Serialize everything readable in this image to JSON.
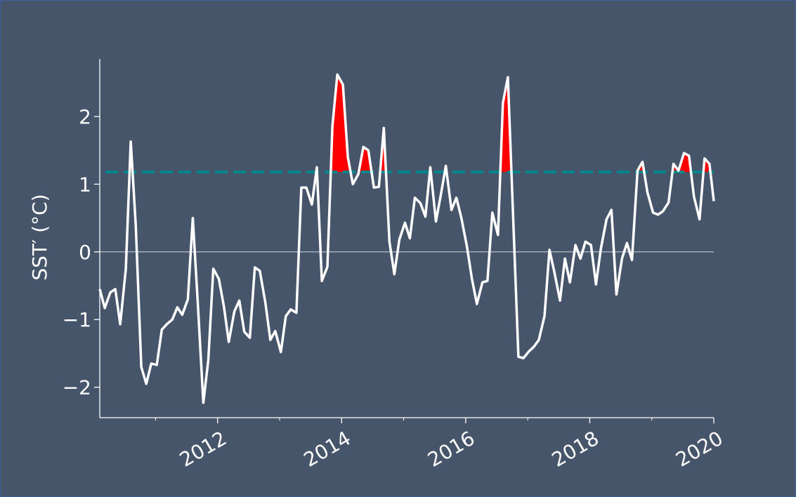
{
  "chart_data": {
    "type": "line",
    "ylabel": "SST′ (°C)",
    "xlim": [
      2010.1,
      2020.0
    ],
    "ylim": [
      -2.45,
      2.85
    ],
    "x_ticks": [
      2012,
      2014,
      2016,
      2018,
      2020
    ],
    "x_tick_labels": [
      "2012",
      "2014",
      "2016",
      "2018",
      "2020"
    ],
    "x_minor_ticks": [
      2011,
      2013,
      2015,
      2017,
      2019
    ],
    "y_ticks": [
      -2,
      -1,
      0,
      1,
      2
    ],
    "y_tick_labels": [
      "−2",
      "−1",
      "0",
      "1",
      "2"
    ],
    "threshold": 1.18,
    "grid": false,
    "colors": {
      "background": "#47556b",
      "line": "#ffffff",
      "threshold_line": "#00868b",
      "fill_above_threshold": "#ff0000",
      "zero_line": "#b4bbc6"
    },
    "series": [
      {
        "x": [
          2010.1,
          2010.18,
          2010.27,
          2010.35,
          2010.43,
          2010.52,
          2010.6,
          2010.68,
          2010.77,
          2010.85,
          2010.93,
          2011.02,
          2011.1,
          2011.18,
          2011.27,
          2011.35,
          2011.43,
          2011.52,
          2011.6,
          2011.68,
          2011.77,
          2011.85,
          2011.93,
          2012.02,
          2012.1,
          2012.18,
          2012.27,
          2012.35,
          2012.43,
          2012.52,
          2012.6,
          2012.68,
          2012.77,
          2012.85,
          2012.93,
          2013.02,
          2013.1,
          2013.18,
          2013.27,
          2013.35,
          2013.43,
          2013.52,
          2013.6,
          2013.68,
          2013.77,
          2013.85,
          2013.93,
          2014.02,
          2014.1,
          2014.18,
          2014.27,
          2014.35,
          2014.43,
          2014.52,
          2014.6,
          2014.68,
          2014.77,
          2014.85,
          2014.93,
          2015.02,
          2015.1,
          2015.18,
          2015.27,
          2015.35,
          2015.43,
          2015.52,
          2015.6,
          2015.68,
          2015.77,
          2015.85,
          2015.93,
          2016.02,
          2016.1,
          2016.18,
          2016.27,
          2016.35,
          2016.43,
          2016.52,
          2016.6,
          2016.68,
          2016.77,
          2016.85,
          2016.93,
          2017.02,
          2017.1,
          2017.18,
          2017.27,
          2017.35,
          2017.43,
          2017.52,
          2017.6,
          2017.68,
          2017.77,
          2017.85,
          2017.93,
          2018.02,
          2018.1,
          2018.18,
          2018.27,
          2018.35,
          2018.43,
          2018.52,
          2018.6,
          2018.68,
          2018.77,
          2018.85,
          2018.93,
          2019.02,
          2019.1,
          2019.18,
          2019.27,
          2019.35,
          2019.43,
          2019.52,
          2019.6,
          2019.68,
          2019.77,
          2019.85,
          2019.93,
          2020.0
        ],
        "y": [
          -0.55,
          -0.83,
          -0.6,
          -0.55,
          -1.07,
          -0.25,
          1.63,
          0.4,
          -1.7,
          -1.95,
          -1.65,
          -1.67,
          -1.15,
          -1.07,
          -1.0,
          -0.82,
          -0.93,
          -0.7,
          0.5,
          -0.75,
          -2.23,
          -1.6,
          -0.25,
          -0.4,
          -0.8,
          -1.33,
          -0.88,
          -0.72,
          -1.18,
          -1.27,
          -0.23,
          -0.28,
          -0.75,
          -1.3,
          -1.17,
          -1.48,
          -0.95,
          -0.85,
          -0.9,
          0.95,
          0.95,
          0.7,
          1.25,
          -0.43,
          -0.22,
          1.85,
          2.62,
          2.47,
          1.4,
          1.0,
          1.15,
          1.55,
          1.5,
          0.95,
          0.96,
          1.83,
          0.15,
          -0.33,
          0.18,
          0.43,
          0.2,
          0.8,
          0.72,
          0.52,
          1.25,
          0.45,
          0.85,
          1.27,
          0.62,
          0.8,
          0.5,
          0.08,
          -0.4,
          -0.77,
          -0.45,
          -0.43,
          0.58,
          0.25,
          2.2,
          2.58,
          0.4,
          -1.55,
          -1.57,
          -1.47,
          -1.4,
          -1.3,
          -0.95,
          0.03,
          -0.3,
          -0.72,
          -0.1,
          -0.45,
          0.1,
          -0.1,
          0.15,
          0.1,
          -0.48,
          0.05,
          0.48,
          0.62,
          -0.63,
          -0.1,
          0.13,
          -0.12,
          1.2,
          1.33,
          0.88,
          0.58,
          0.55,
          0.6,
          0.73,
          1.3,
          1.2,
          1.46,
          1.42,
          0.82,
          0.48,
          1.38,
          1.3,
          0.75
        ]
      }
    ]
  }
}
